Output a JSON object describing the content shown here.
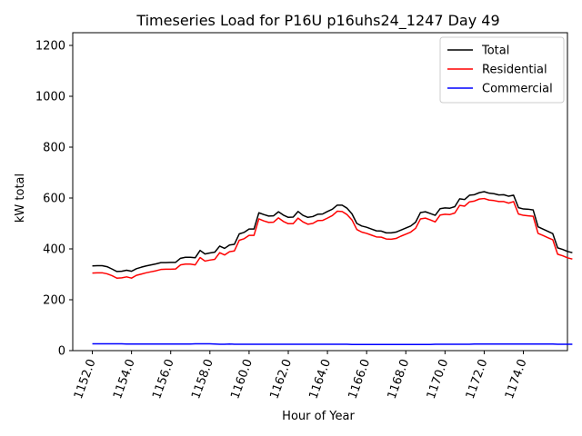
{
  "chart_data": {
    "type": "line",
    "title": "Timeseries Load for P16U p16uhs24_1247  Day 49",
    "xlabel": "Hour of Year",
    "ylabel": "kW total",
    "xlim": [
      1151.0,
      1176.25
    ],
    "ylim": [
      0,
      1250
    ],
    "x_ticks": [
      1152,
      1154,
      1156,
      1158,
      1160,
      1162,
      1164,
      1166,
      1168,
      1170,
      1172,
      1174
    ],
    "x_tick_labels": [
      "1152.0",
      "1154.0",
      "1156.0",
      "1158.0",
      "1160.0",
      "1162.0",
      "1164.0",
      "1166.0",
      "1168.0",
      "1170.0",
      "1172.0",
      "1174.0"
    ],
    "y_ticks": [
      0,
      200,
      400,
      600,
      800,
      1000,
      1200
    ],
    "y_tick_labels": [
      "0",
      "200",
      "400",
      "600",
      "800",
      "1000",
      "1200"
    ],
    "legend_position": "top-right",
    "x_start": 1152.0,
    "x_step": 0.25,
    "series": [
      {
        "name": "Total",
        "color": "#000000",
        "values": [
          333,
          334,
          334,
          330,
          321,
          311,
          312,
          316,
          312,
          322,
          328,
          333,
          337,
          341,
          346,
          346,
          347,
          347,
          363,
          367,
          367,
          365,
          394,
          380,
          384,
          387,
          411,
          402,
          415,
          418,
          459,
          465,
          478,
          478,
          542,
          535,
          529,
          530,
          546,
          533,
          524,
          525,
          547,
          532,
          524,
          527,
          536,
          537,
          547,
          556,
          572,
          572,
          560,
          538,
          500,
          490,
          485,
          478,
          471,
          470,
          463,
          463,
          466,
          474,
          482,
          490,
          505,
          543,
          546,
          539,
          532,
          558,
          561,
          560,
          566,
          597,
          594,
          611,
          613,
          621,
          625,
          619,
          617,
          612,
          613,
          607,
          611,
          562,
          557,
          556,
          553,
          487,
          478,
          469,
          460,
          404,
          398,
          390,
          385
        ]
      },
      {
        "name": "Residential",
        "color": "#ff0000",
        "values": [
          305,
          306,
          306,
          302,
          295,
          285,
          286,
          290,
          285,
          296,
          301,
          306,
          310,
          314,
          319,
          320,
          320,
          321,
          337,
          340,
          340,
          337,
          366,
          352,
          356,
          359,
          385,
          376,
          389,
          392,
          434,
          440,
          453,
          453,
          518,
          510,
          504,
          505,
          522,
          508,
          499,
          499,
          521,
          506,
          497,
          500,
          511,
          512,
          521,
          531,
          548,
          547,
          535,
          514,
          476,
          466,
          461,
          454,
          447,
          446,
          439,
          438,
          441,
          450,
          458,
          466,
          481,
          518,
          521,
          514,
          506,
          533,
          536,
          535,
          541,
          571,
          568,
          585,
          588,
          596,
          598,
          592,
          590,
          586,
          586,
          580,
          586,
          537,
          532,
          530,
          528,
          461,
          453,
          444,
          436,
          379,
          373,
          365,
          360
        ]
      },
      {
        "name": "Commercial",
        "color": "#0000ff",
        "values": [
          27,
          27,
          27,
          27,
          27,
          27,
          27,
          26,
          26,
          26,
          26,
          26,
          26,
          26,
          26,
          26,
          26,
          26,
          26,
          26,
          26,
          27,
          27,
          27,
          27,
          26,
          25,
          25,
          26,
          25,
          25,
          25,
          25,
          25,
          25,
          25,
          25,
          25,
          25,
          25,
          25,
          25,
          25,
          25,
          25,
          25,
          25,
          25,
          25,
          25,
          25,
          25,
          25,
          24,
          24,
          24,
          24,
          24,
          24,
          24,
          24,
          24,
          24,
          24,
          24,
          24,
          24,
          24,
          24,
          24,
          25,
          25,
          25,
          25,
          25,
          25,
          25,
          25,
          26,
          26,
          26,
          26,
          26,
          26,
          26,
          26,
          26,
          26,
          26,
          26,
          26,
          26,
          26,
          26,
          26,
          25,
          25,
          25,
          25
        ]
      }
    ]
  }
}
